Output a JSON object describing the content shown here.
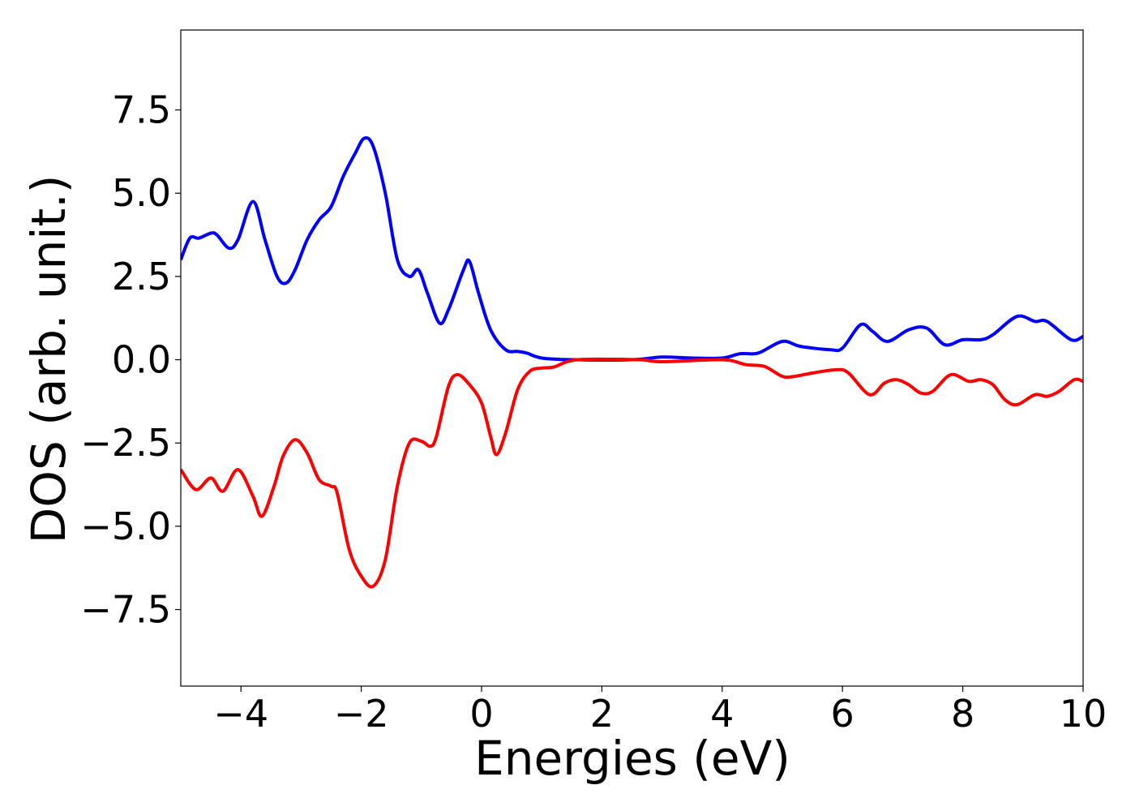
{
  "chart_data": {
    "type": "line",
    "xlabel": "Energies (eV)",
    "ylabel": "DOS (arb. unit.)",
    "xlim": [
      -5,
      10
    ],
    "ylim": [
      -9.8,
      9.9
    ],
    "xticks": [
      {
        "value": -4,
        "label": "−4"
      },
      {
        "value": -2,
        "label": "−2"
      },
      0,
      2,
      4,
      6,
      8,
      10
    ],
    "yticks": [
      {
        "value": -7.5,
        "label": "−7.5"
      },
      {
        "value": -5,
        "label": "−5.0"
      },
      {
        "value": -2.5,
        "label": "−2.5"
      },
      {
        "value": 0,
        "label": "0.0"
      },
      2.5,
      {
        "value": 5,
        "label": "5.0"
      },
      7.5
    ],
    "series": [
      {
        "color": "#0000ff",
        "x": [
          -5,
          -4.85,
          -4.7,
          -4.5,
          -4.4,
          -4.2,
          -4.05,
          -3.8,
          -3.6,
          -3.4,
          -3.25,
          -3.1,
          -2.9,
          -2.7,
          -2.5,
          -2.3,
          -2.1,
          -1.95,
          -1.8,
          -1.6,
          -1.4,
          -1.2,
          -1.05,
          -0.9,
          -0.7,
          -0.55,
          -0.3,
          -0.2,
          -0.05,
          0.15,
          0.4,
          0.6,
          0.75,
          1.0,
          1.5,
          2.5,
          3.0,
          3.5,
          4.0,
          4.3,
          4.6,
          5.0,
          5.3,
          5.8,
          6.0,
          6.3,
          6.5,
          6.75,
          7.1,
          7.4,
          7.7,
          8.0,
          8.3,
          8.5,
          8.9,
          9.2,
          9.4,
          9.8,
          10
        ],
        "values": [
          3.0,
          3.65,
          3.65,
          3.8,
          3.75,
          3.35,
          3.6,
          4.75,
          3.6,
          2.5,
          2.3,
          2.7,
          3.6,
          4.2,
          4.6,
          5.5,
          6.2,
          6.65,
          6.4,
          5.0,
          3.0,
          2.5,
          2.7,
          2.0,
          1.1,
          1.5,
          2.7,
          2.95,
          2.0,
          0.9,
          0.3,
          0.25,
          0.2,
          0.05,
          0.0,
          0.0,
          0.08,
          0.05,
          0.05,
          0.18,
          0.2,
          0.55,
          0.4,
          0.3,
          0.35,
          1.05,
          0.85,
          0.55,
          0.9,
          0.95,
          0.45,
          0.6,
          0.6,
          0.75,
          1.3,
          1.15,
          1.15,
          0.6,
          0.7
        ]
      },
      {
        "color": "#ff0000",
        "x": [
          -5,
          -4.75,
          -4.5,
          -4.3,
          -4.05,
          -3.8,
          -3.65,
          -3.45,
          -3.3,
          -3.1,
          -2.9,
          -2.7,
          -2.5,
          -2.4,
          -2.2,
          -2.0,
          -1.8,
          -1.6,
          -1.4,
          -1.2,
          -1.0,
          -0.85,
          -0.75,
          -0.55,
          -0.4,
          -0.2,
          0.0,
          0.15,
          0.25,
          0.4,
          0.6,
          0.8,
          1.0,
          1.2,
          1.6,
          2.6,
          3.0,
          4.0,
          4.4,
          4.7,
          5.0,
          5.2,
          5.5,
          5.9,
          6.1,
          6.45,
          6.7,
          6.9,
          7.1,
          7.3,
          7.5,
          7.8,
          8.1,
          8.3,
          8.5,
          8.7,
          8.9,
          9.2,
          9.4,
          9.6,
          9.85,
          10
        ],
        "values": [
          -3.3,
          -3.9,
          -3.55,
          -3.95,
          -3.3,
          -4.1,
          -4.7,
          -3.8,
          -2.9,
          -2.4,
          -2.8,
          -3.6,
          -3.8,
          -4.0,
          -5.7,
          -6.5,
          -6.8,
          -6.0,
          -3.8,
          -2.5,
          -2.45,
          -2.6,
          -2.3,
          -0.8,
          -0.45,
          -0.75,
          -1.3,
          -2.3,
          -2.85,
          -2.2,
          -0.9,
          -0.35,
          -0.25,
          -0.22,
          0.0,
          0.0,
          -0.06,
          0.0,
          -0.15,
          -0.2,
          -0.5,
          -0.5,
          -0.4,
          -0.3,
          -0.4,
          -1.05,
          -0.7,
          -0.6,
          -0.75,
          -1.0,
          -0.95,
          -0.45,
          -0.65,
          -0.6,
          -0.75,
          -1.2,
          -1.35,
          -1.05,
          -1.1,
          -0.95,
          -0.6,
          -0.65
        ]
      }
    ]
  }
}
